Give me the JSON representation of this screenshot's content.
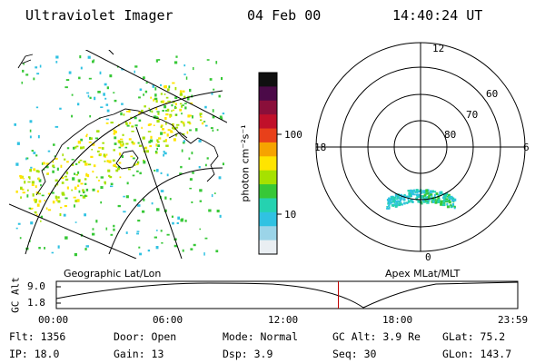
{
  "header": {
    "title": "Ultraviolet Imager",
    "date": "04 Feb 00",
    "time": "14:40:24 UT"
  },
  "colorbar": {
    "label": "photon cm⁻²s⁻¹",
    "ticks": [
      "100",
      "10"
    ],
    "colors": [
      "#101010",
      "#4b0a48",
      "#8a0f3a",
      "#c0102a",
      "#e8401a",
      "#f6a300",
      "#ffe400",
      "#a6e100",
      "#37c837",
      "#25d2b0",
      "#30c2e2",
      "#9bd4e8",
      "#e9eef2"
    ]
  },
  "polar_plot": {
    "mlt_labels": {
      "top": "12",
      "left": "18",
      "right": "6",
      "bottom": "0"
    },
    "lat_labels": [
      "60",
      "70",
      "80"
    ]
  },
  "map_labels": {
    "left": "Geographic Lat/Lon",
    "right": "Apex MLat/MLT"
  },
  "altitude_plot": {
    "ylabel": "GC Alt",
    "yticks": [
      "9.0",
      "1.8"
    ],
    "xticks": [
      "00:00",
      "06:00",
      "12:00",
      "18:00",
      "23:59"
    ],
    "current_time_hours": 14.67,
    "marker_color": "#c00000"
  },
  "info": {
    "flt": "Flt: 1356",
    "ip": "IP: 18.0",
    "door": "Door: Open",
    "gain": "Gain: 13",
    "mode": "Mode: Normal",
    "dsp": "Dsp:    3.9",
    "gcalt": "GC Alt: 3.9 Re",
    "seq": "Seq: 30",
    "glat": "GLat: 75.2",
    "glon": "GLon: 143.7"
  }
}
